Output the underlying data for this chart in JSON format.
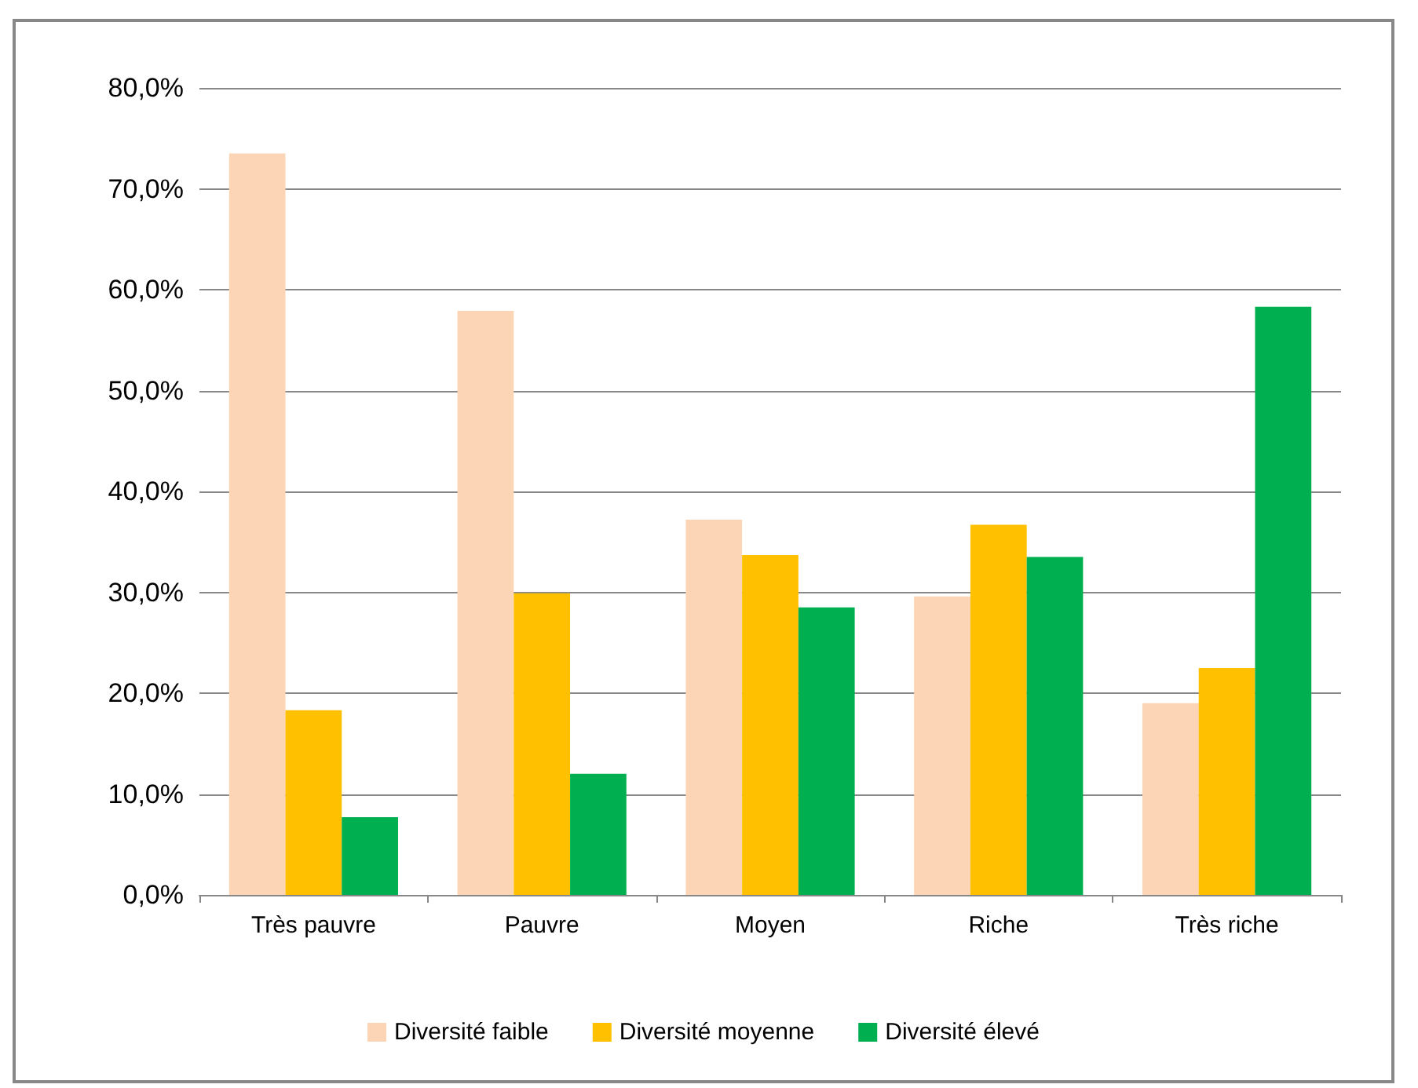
{
  "chart_data": {
    "type": "bar",
    "categories": [
      "Très pauvre",
      "Pauvre",
      "Moyen",
      "Riche",
      "Très riche"
    ],
    "series": [
      {
        "name": "Diversité faible",
        "color": "#fbd5b5",
        "values": [
          73.5,
          57.9,
          37.2,
          29.6,
          19.0
        ]
      },
      {
        "name": "Diversité moyenne",
        "color": "#ffc000",
        "values": [
          18.3,
          29.9,
          33.7,
          36.7,
          22.5
        ]
      },
      {
        "name": "Diversité élevé",
        "color": "#00b050",
        "values": [
          7.7,
          12.0,
          28.5,
          33.5,
          58.3
        ]
      }
    ],
    "ylim": [
      0,
      80
    ],
    "yticks": [
      {
        "value": 0,
        "label": "0,0%"
      },
      {
        "value": 10,
        "label": "10,0%"
      },
      {
        "value": 20,
        "label": "20,0%"
      },
      {
        "value": 30,
        "label": "30,0%"
      },
      {
        "value": 40,
        "label": "40,0%"
      },
      {
        "value": 50,
        "label": "50,0%"
      },
      {
        "value": 60,
        "label": "60,0%"
      },
      {
        "value": 70,
        "label": "70,0%"
      },
      {
        "value": 80,
        "label": "80,0%"
      }
    ],
    "grid": "y",
    "legend": "bottom"
  }
}
